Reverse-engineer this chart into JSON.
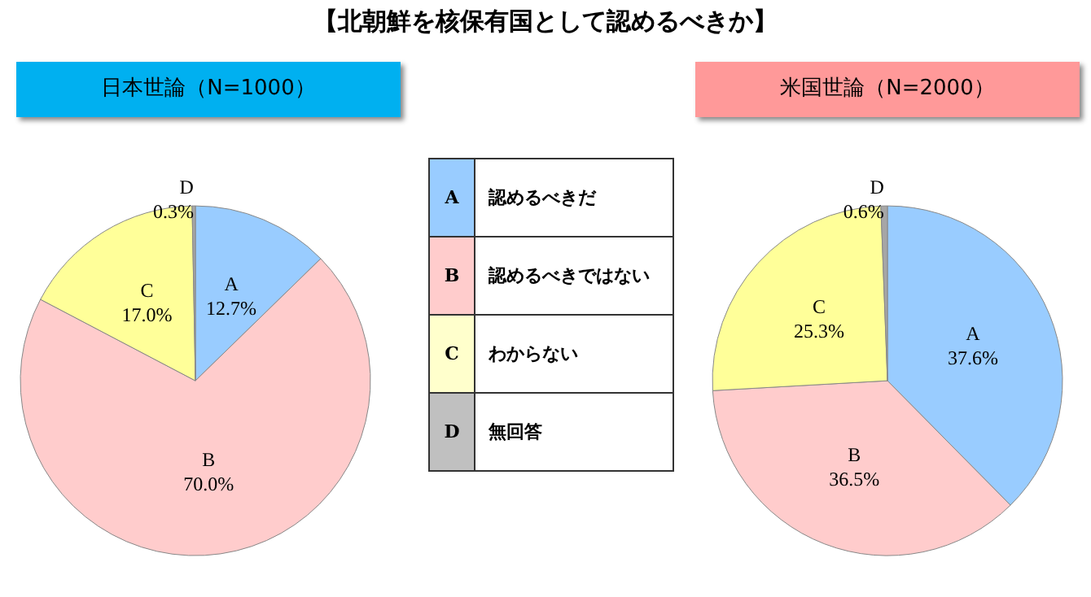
{
  "chart_data": [
    {
      "type": "pie",
      "subtitle": "日本世論（N=1000）",
      "categories": [
        "A",
        "B",
        "C",
        "D"
      ],
      "values": [
        12.7,
        70.0,
        17.0,
        0.3
      ],
      "value_labels": [
        "12.7%",
        "70.0%",
        "17.0%",
        "0.3%"
      ],
      "colors": [
        "#99ccff",
        "#ffcccc",
        "#ffff99",
        "#a6a6a6"
      ],
      "legend": false
    },
    {
      "type": "other",
      "title": "【北朝鮮を核保有国として認めるべきか】",
      "categories": [
        "A",
        "B",
        "C",
        "D"
      ],
      "annotations": [
        "認めるべきだ",
        "認めるべきではない",
        "わからない",
        "無回答"
      ],
      "colors": [
        "#99ccff",
        "#ffcccc",
        "#ffffcc",
        "#c0c0c0"
      ]
    },
    {
      "type": "pie",
      "subtitle": "米国世論（N=2000）",
      "categories": [
        "A",
        "B",
        "C",
        "D"
      ],
      "values": [
        37.6,
        36.5,
        25.3,
        0.6
      ],
      "value_labels": [
        "37.6%",
        "36.5%",
        "25.3%",
        "0.6%"
      ],
      "colors": [
        "#99ccff",
        "#ffcccc",
        "#ffff99",
        "#a6a6a6"
      ],
      "legend": false
    }
  ]
}
